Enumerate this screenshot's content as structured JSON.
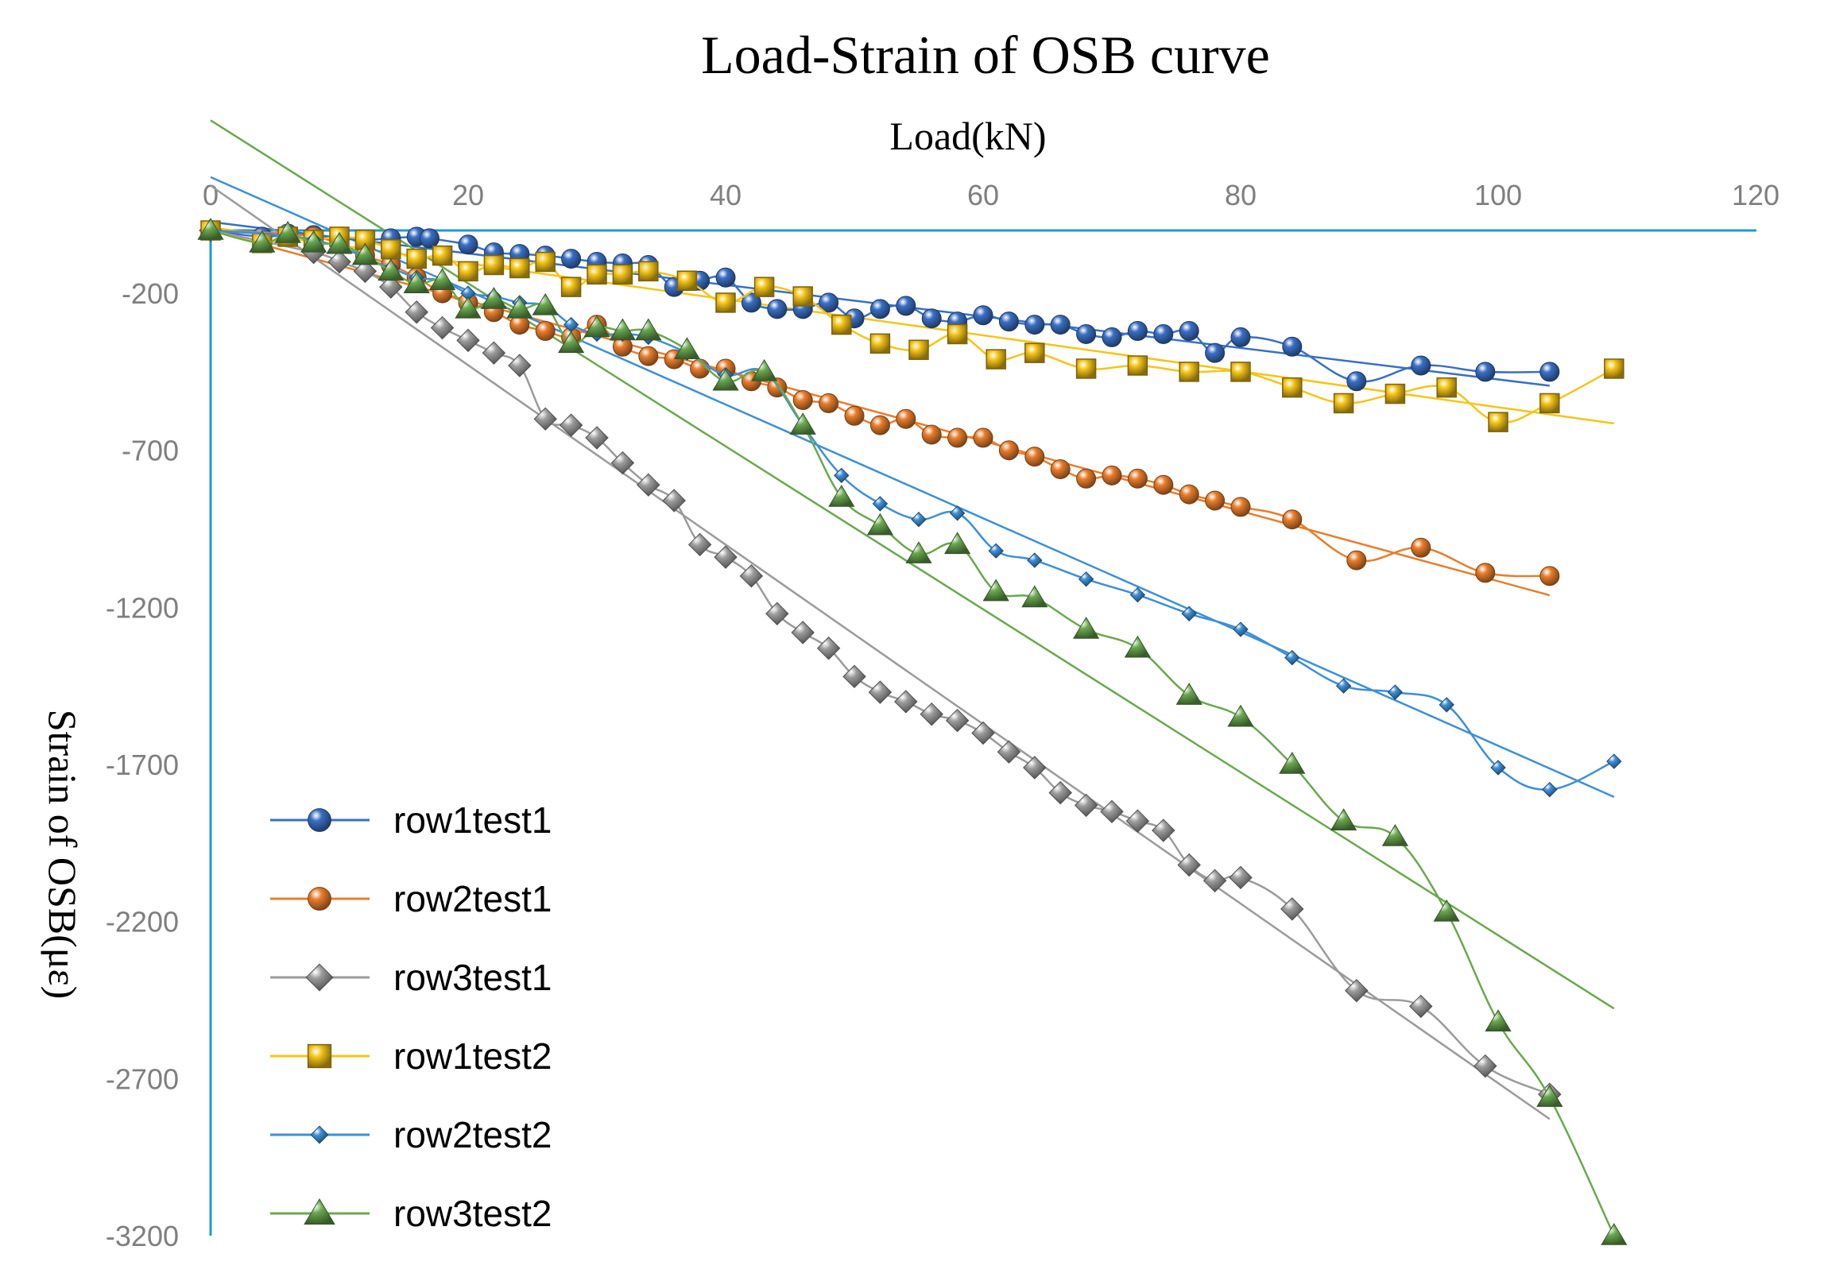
{
  "chart_data": {
    "type": "line",
    "title": "Load-Strain of OSB curve",
    "xlabel": "Load(kN)",
    "ylabel": "Strain of OSB(με)",
    "xlim": [
      0,
      120
    ],
    "ylim": [
      -3200,
      0
    ],
    "x_ticks": [
      "0",
      "20",
      "40",
      "60",
      "80",
      "100",
      "120"
    ],
    "y_ticks": [
      "-200",
      "-700",
      "-1200",
      "-1700",
      "-2200",
      "-2700",
      "-3200"
    ],
    "x_axis_position": "top",
    "grid": false,
    "legend_position": "bottom-left",
    "series": [
      {
        "name": "row1test1",
        "color": "#3a6fc4",
        "marker": "sphere",
        "x": [
          0,
          4,
          6,
          8,
          10,
          12,
          14,
          16,
          17,
          20,
          22,
          24,
          26,
          28,
          30,
          32,
          34,
          36,
          38,
          40,
          42,
          44,
          46,
          48,
          50,
          52,
          54,
          56,
          58,
          60,
          62,
          64,
          66,
          68,
          70,
          72,
          74,
          76,
          78,
          80,
          84,
          89,
          94,
          99,
          104
        ],
        "y": [
          0,
          -20,
          -10,
          -15,
          -25,
          -30,
          -25,
          -20,
          -25,
          -45,
          -70,
          -75,
          -80,
          -90,
          -100,
          -105,
          -110,
          -180,
          -160,
          -150,
          -230,
          -250,
          -250,
          -230,
          -280,
          -250,
          -240,
          -280,
          -290,
          -270,
          -290,
          -300,
          -300,
          -330,
          -340,
          -320,
          -330,
          -320,
          -390,
          -340,
          -370,
          -480,
          -430,
          -450,
          -450
        ]
      },
      {
        "name": "row2test1",
        "color": "#e87d2c",
        "marker": "sphere",
        "x": [
          0,
          8,
          12,
          14,
          16,
          18,
          20,
          22,
          24,
          26,
          28,
          30,
          32,
          34,
          36,
          38,
          40,
          42,
          44,
          46,
          48,
          50,
          52,
          54,
          56,
          58,
          60,
          62,
          64,
          66,
          68,
          70,
          72,
          74,
          76,
          78,
          80,
          84,
          89,
          94,
          99,
          104
        ],
        "y": [
          0,
          -20,
          -80,
          -110,
          -150,
          -200,
          -230,
          -260,
          -300,
          -320,
          -340,
          -300,
          -370,
          -400,
          -410,
          -440,
          -440,
          -480,
          -500,
          -540,
          -550,
          -590,
          -620,
          -600,
          -650,
          -660,
          -660,
          -700,
          -720,
          -760,
          -790,
          -780,
          -790,
          -810,
          -840,
          -860,
          -880,
          -920,
          -1050,
          -1010,
          -1090,
          -1100
        ]
      },
      {
        "name": "row3test1",
        "color": "#9b9b9b",
        "marker": "diamond",
        "x": [
          0,
          8,
          10,
          12,
          14,
          16,
          18,
          20,
          22,
          24,
          26,
          28,
          30,
          32,
          34,
          36,
          38,
          40,
          42,
          44,
          46,
          48,
          50,
          52,
          54,
          56,
          58,
          60,
          62,
          64,
          66,
          68,
          70,
          72,
          74,
          76,
          78,
          80,
          84,
          89,
          94,
          99,
          104
        ],
        "y": [
          0,
          -70,
          -100,
          -130,
          -180,
          -260,
          -310,
          -350,
          -390,
          -430,
          -600,
          -620,
          -660,
          -740,
          -810,
          -860,
          -1000,
          -1040,
          -1100,
          -1220,
          -1280,
          -1330,
          -1420,
          -1470,
          -1500,
          -1540,
          -1560,
          -1600,
          -1660,
          -1710,
          -1790,
          -1830,
          -1850,
          -1880,
          -1910,
          -2020,
          -2070,
          -2060,
          -2160,
          -2420,
          -2470,
          -2660,
          -2750
        ]
      },
      {
        "name": "row1test2",
        "color": "#f5c518",
        "marker": "square",
        "x": [
          0,
          4,
          6,
          8,
          10,
          12,
          14,
          16,
          18,
          20,
          22,
          24,
          26,
          28,
          30,
          32,
          34,
          37,
          40,
          43,
          46,
          49,
          52,
          55,
          58,
          61,
          64,
          68,
          72,
          76,
          80,
          84,
          88,
          92,
          96,
          100,
          104,
          109
        ],
        "y": [
          0,
          -40,
          -20,
          -30,
          -20,
          -30,
          -60,
          -90,
          -80,
          -130,
          -110,
          -120,
          -100,
          -180,
          -140,
          -140,
          -130,
          -160,
          -230,
          -180,
          -210,
          -300,
          -360,
          -380,
          -330,
          -410,
          -390,
          -440,
          -430,
          -450,
          -450,
          -500,
          -550,
          -520,
          -500,
          -610,
          -550,
          -440
        ]
      },
      {
        "name": "row2test2",
        "color": "#3d8fd8",
        "marker": "small-diamond",
        "x": [
          0,
          8,
          14,
          16,
          18,
          20,
          22,
          24,
          26,
          28,
          30,
          32,
          34,
          37,
          40,
          43,
          46,
          49,
          52,
          55,
          58,
          61,
          64,
          68,
          72,
          76,
          80,
          84,
          88,
          92,
          96,
          100,
          104,
          109
        ],
        "y": [
          0,
          -30,
          -120,
          -150,
          -160,
          -200,
          -210,
          -230,
          -240,
          -300,
          -330,
          -330,
          -340,
          -390,
          -460,
          -450,
          -620,
          -780,
          -870,
          -920,
          -900,
          -1020,
          -1050,
          -1110,
          -1160,
          -1220,
          -1270,
          -1360,
          -1450,
          -1470,
          -1510,
          -1710,
          -1780,
          -1690
        ]
      },
      {
        "name": "row3test2",
        "color": "#6aa84f",
        "marker": "triangle",
        "x": [
          0,
          4,
          6,
          8,
          10,
          12,
          14,
          16,
          18,
          20,
          22,
          24,
          26,
          28,
          30,
          32,
          34,
          37,
          40,
          43,
          46,
          49,
          52,
          55,
          58,
          61,
          64,
          68,
          72,
          76,
          80,
          84,
          88,
          92,
          96,
          100,
          104,
          109
        ],
        "y": [
          0,
          -40,
          -10,
          -40,
          -45,
          -80,
          -130,
          -170,
          -160,
          -250,
          -220,
          -250,
          -240,
          -360,
          -310,
          -320,
          -320,
          -380,
          -480,
          -450,
          -620,
          -850,
          -940,
          -1030,
          -1000,
          -1150,
          -1170,
          -1270,
          -1330,
          -1480,
          -1550,
          -1700,
          -1880,
          -1930,
          -2170,
          -2520,
          -2760,
          -3200
        ]
      }
    ]
  }
}
